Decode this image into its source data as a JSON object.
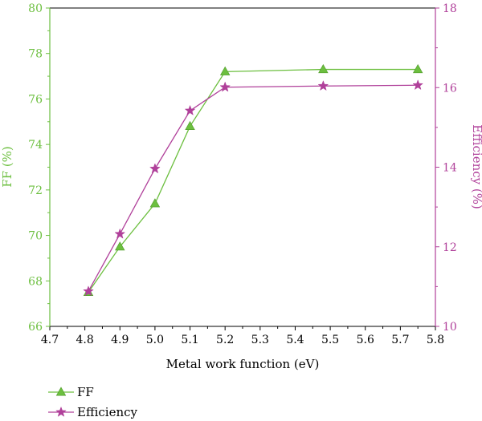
{
  "chart_data": {
    "type": "line",
    "xlabel": "Metal work function (eV)",
    "ylabel_left": "FF (%)",
    "ylabel_right": "Efficiency (%)",
    "xlim": [
      4.7,
      5.8
    ],
    "xticks": [
      4.7,
      4.8,
      4.9,
      5.0,
      5.1,
      5.2,
      5.3,
      5.4,
      5.5,
      5.6,
      5.7,
      5.8
    ],
    "xtick_labels": [
      "4.7",
      "4.8",
      "4.9",
      "5.0",
      "5.1",
      "5.2",
      "5.3",
      "5.4",
      "5.5",
      "5.6",
      "5.7",
      "5.8"
    ],
    "ylim_left": [
      66,
      80
    ],
    "yticks_left": [
      66,
      68,
      70,
      72,
      74,
      76,
      78,
      80
    ],
    "ylim_right": [
      10,
      18
    ],
    "yticks_right": [
      10,
      12,
      14,
      16,
      18
    ],
    "grid": false,
    "legend_position": "below-left",
    "x": [
      4.81,
      4.9,
      5.0,
      5.1,
      5.2,
      5.48,
      5.75
    ],
    "series": [
      {
        "name": "FF",
        "axis": "left",
        "marker": "triangle",
        "color": "#6cbf3f",
        "values": [
          67.5,
          69.5,
          71.4,
          74.8,
          77.2,
          77.3,
          77.3
        ]
      },
      {
        "name": "Efficiency",
        "axis": "right",
        "marker": "star",
        "color": "#b0409a",
        "values": [
          10.88,
          12.32,
          13.96,
          15.42,
          16.01,
          16.04,
          16.06
        ]
      }
    ]
  }
}
